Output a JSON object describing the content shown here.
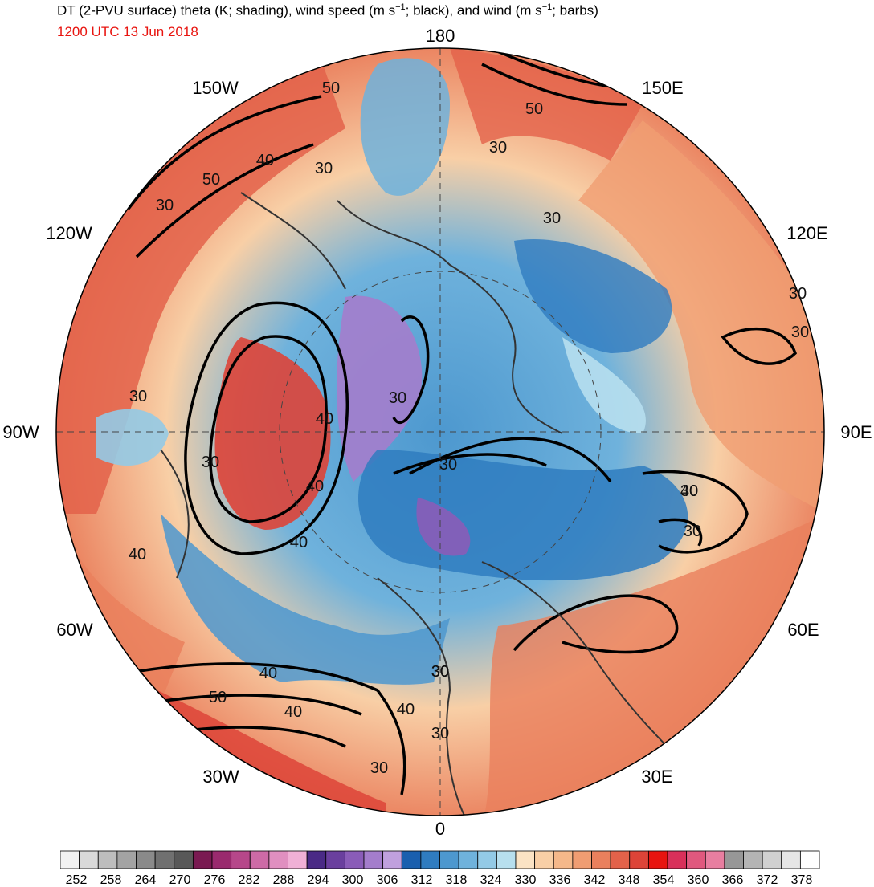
{
  "header": {
    "title_main": "DT (2-PVU surface) theta (K; shading), wind speed (m s",
    "title_sup1": "−1",
    "title_mid": "; black), and wind (m s",
    "title_sup2": "−1",
    "title_end": "; barbs)",
    "valid_time": "1200 UTC 13 Jun 2018"
  },
  "map": {
    "projection": "north-polar-stereographic",
    "longitude_labels": [
      "180",
      "150E",
      "120E",
      "90E",
      "60E",
      "30E",
      "0",
      "30W",
      "60W",
      "90W",
      "120W",
      "150W"
    ],
    "contour_labels": [
      "50",
      "50",
      "40",
      "30",
      "50",
      "30",
      "30",
      "30",
      "30",
      "30",
      "30",
      "40",
      "30",
      "40",
      "30",
      "40",
      "30",
      "40",
      "40",
      "30",
      "30",
      "30",
      "30",
      "30",
      "40",
      "50",
      "40",
      "30",
      "40",
      "30"
    ]
  },
  "colorbar": {
    "label_values": [
      "252",
      "258",
      "264",
      "270",
      "276",
      "282",
      "288",
      "294",
      "300",
      "306",
      "312",
      "318",
      "324",
      "330",
      "336",
      "342",
      "348",
      "354",
      "360",
      "366",
      "372",
      "378"
    ],
    "colors": [
      "#f2f2f2",
      "#d9d9d9",
      "#bdbdbd",
      "#a3a3a3",
      "#8a8a8a",
      "#707070",
      "#585858",
      "#7a1a52",
      "#9a2a6e",
      "#b6478a",
      "#cd6aa6",
      "#e08fc0",
      "#f0b0d6",
      "#4a2a86",
      "#6a3f9e",
      "#8a5cb8",
      "#a47dcc",
      "#c0a0de",
      "#1a5fae",
      "#2f7cc0",
      "#4d98cf",
      "#6fb2dc",
      "#93cae6",
      "#b7dfee",
      "#fbe3c4",
      "#f8cfa6",
      "#f5b88a",
      "#f09d72",
      "#ea805d",
      "#e3624a",
      "#dd4438",
      "#e8140f",
      "#d8305a",
      "#e0587e",
      "#e87ea0",
      "#979797",
      "#b4b4b4",
      "#d0d0d0",
      "#e6e6e6",
      "#ffffff"
    ]
  }
}
